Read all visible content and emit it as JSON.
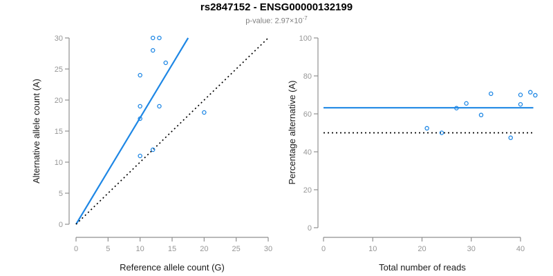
{
  "header": {
    "title": "rs2847152 - ENSG00000132199",
    "subtitle_prefix": "p-value: 2.97×10",
    "subtitle_exponent": "-7"
  },
  "colors": {
    "accent_blue": "#1E87E5",
    "line_black": "#000000",
    "axis_gray": "#8f8f8f",
    "tick_label_gray": "#969696",
    "axis_title_black": "#1a1a1a"
  },
  "chart_data": [
    {
      "type": "scatter",
      "name": "allele-count-panel",
      "xlabel": "Reference allele count (G)",
      "ylabel": "Alternative allele count (A)",
      "xlim": [
        0,
        30
      ],
      "ylim": [
        0,
        30
      ],
      "xticks": [
        0,
        5,
        10,
        15,
        20,
        25,
        30
      ],
      "yticks": [
        0,
        5,
        10,
        15,
        20,
        25,
        30
      ],
      "grid": false,
      "points": [
        [
          12,
          30
        ],
        [
          13,
          30
        ],
        [
          12,
          28
        ],
        [
          14,
          26
        ],
        [
          10,
          24
        ],
        [
          10,
          19
        ],
        [
          13,
          19
        ],
        [
          10,
          17
        ],
        [
          20,
          18
        ],
        [
          12,
          12
        ],
        [
          10,
          11
        ]
      ],
      "lines": [
        {
          "name": "regression-line",
          "style": "solid",
          "color": "blue",
          "x1": 0,
          "y1": 0,
          "x2": 17.5,
          "y2": 30
        },
        {
          "name": "identity-line",
          "style": "dotted",
          "color": "black",
          "x1": 0,
          "y1": 0,
          "x2": 30,
          "y2": 30
        }
      ]
    },
    {
      "type": "scatter",
      "name": "percentage-panel",
      "xlabel": "Total number of reads",
      "ylabel": "Percentage alternative (A)",
      "xlim": [
        0,
        43
      ],
      "ylim": [
        0,
        100
      ],
      "xticks": [
        0,
        10,
        20,
        30,
        40
      ],
      "yticks": [
        0,
        20,
        40,
        60,
        80,
        100
      ],
      "grid": false,
      "points": [
        [
          42,
          71.4
        ],
        [
          43,
          69.8
        ],
        [
          40,
          70.0
        ],
        [
          40,
          65.0
        ],
        [
          34,
          70.6
        ],
        [
          29,
          65.5
        ],
        [
          32,
          59.4
        ],
        [
          27,
          63.0
        ],
        [
          38,
          47.4
        ],
        [
          24,
          50.0
        ],
        [
          21,
          52.4
        ]
      ],
      "lines": [
        {
          "name": "mean-percentage-line",
          "style": "solid",
          "color": "blue",
          "x1": 0,
          "y1": 63.2,
          "x2": 42.6,
          "y2": 63.2
        },
        {
          "name": "fifty-percent-line",
          "style": "dotted",
          "color": "black",
          "x1": 0,
          "y1": 50,
          "x2": 42.6,
          "y2": 50
        }
      ]
    }
  ]
}
